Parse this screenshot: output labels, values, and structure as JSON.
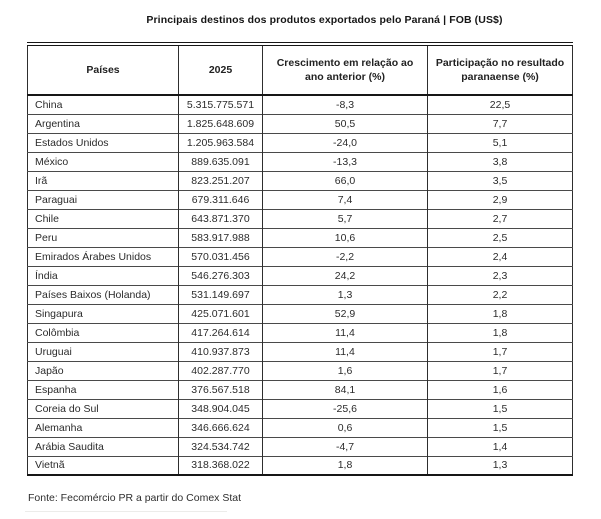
{
  "title": "Principais destinos dos produtos exportados pelo Paraná | FOB (US$)",
  "footer": {
    "source": "Fonte: Fecomércio PR a partir do Comex Stat"
  },
  "colors": {
    "text": "#2b2b2b",
    "border_heavy": "#161616",
    "border_light": "#4a4a4a",
    "background": "#ffffff"
  },
  "chart_data": {
    "type": "table",
    "title": "Principais destinos dos produtos exportados pelo Paraná | FOB (US$)",
    "columns": [
      "Países",
      "2025",
      "Crescimento em relação ao ano  anterior (%)",
      "Participação no resultado paranaense (%)"
    ],
    "rows": [
      [
        "China",
        "5.315.775.571",
        "-8,3",
        "22,5"
      ],
      [
        "Argentina",
        "1.825.648.609",
        "50,5",
        "7,7"
      ],
      [
        "Estados Unidos",
        "1.205.963.584",
        "-24,0",
        "5,1"
      ],
      [
        "México",
        "889.635.091",
        "-13,3",
        "3,8"
      ],
      [
        "Irã",
        "823.251.207",
        "66,0",
        "3,5"
      ],
      [
        "Paraguai",
        "679.311.646",
        "7,4",
        "2,9"
      ],
      [
        "Chile",
        "643.871.370",
        "5,7",
        "2,7"
      ],
      [
        "Peru",
        "583.917.988",
        "10,6",
        "2,5"
      ],
      [
        "Emirados Árabes Unidos",
        "570.031.456",
        "-2,2",
        "2,4"
      ],
      [
        "Índia",
        "546.276.303",
        "24,2",
        "2,3"
      ],
      [
        "Países Baixos (Holanda)",
        "531.149.697",
        "1,3",
        "2,2"
      ],
      [
        "Singapura",
        "425.071.601",
        "52,9",
        "1,8"
      ],
      [
        "Colômbia",
        "417.264.614",
        "11,4",
        "1,8"
      ],
      [
        "Uruguai",
        "410.937.873",
        "11,4",
        "1,7"
      ],
      [
        "Japão",
        "402.287.770",
        "1,6",
        "1,7"
      ],
      [
        "Espanha",
        "376.567.518",
        "84,1",
        "1,6"
      ],
      [
        "Coreia do Sul",
        "348.904.045",
        "-25,6",
        "1,5"
      ],
      [
        "Alemanha",
        "346.666.624",
        "0,6",
        "1,5"
      ],
      [
        "Arábia Saudita",
        "324.534.742",
        "-4,7",
        "1,4"
      ],
      [
        "Vietnã",
        "318.368.022",
        "1,8",
        "1,3"
      ]
    ],
    "source": "Fonte: Fecomércio PR a partir do Comex Stat"
  }
}
